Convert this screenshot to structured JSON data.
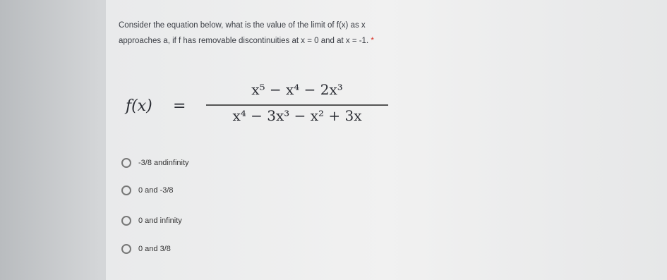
{
  "question": {
    "lines": [
      "Consider the equation below, what is the value of the limit of f(x) as x",
      "approaches a, if f has removable discontinuities at x = 0 and at x = -1."
    ],
    "required": "*"
  },
  "formula": {
    "lhs": "f(x)",
    "equals": "=",
    "numerator": "x⁵ − x⁴ − 2x³",
    "denominator": "x⁴ − 3x³ − x² + 3x"
  },
  "options": [
    "-3/8 andinfinity",
    "0 and -3/8",
    "0 and infinity",
    "0 and 3/8"
  ]
}
